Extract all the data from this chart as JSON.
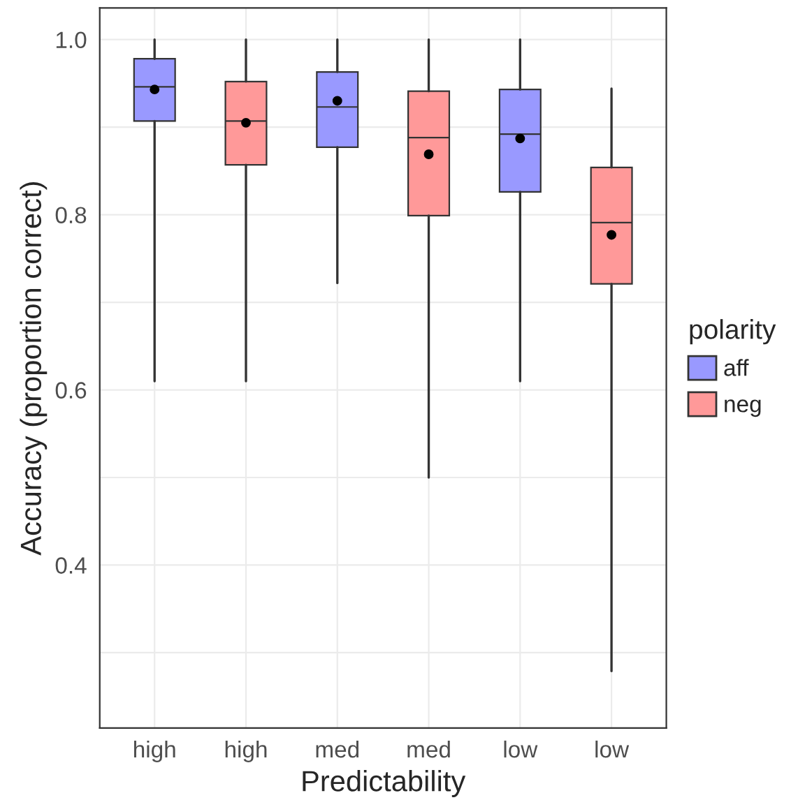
{
  "chart_data": {
    "type": "box",
    "xlabel": "Predictability",
    "ylabel": "Accuracy (proportion correct)",
    "legend_title": "polarity",
    "categories": [
      "high",
      "high",
      "med",
      "med",
      "low",
      "low"
    ],
    "series": [
      {
        "name": "aff",
        "color": "#9999ff",
        "boxes": [
          {
            "low": 0.61,
            "q1": 0.907,
            "median": 0.946,
            "q3": 0.978,
            "high": 1.0,
            "mean": 0.943
          },
          null,
          {
            "low": 0.722,
            "q1": 0.877,
            "median": 0.923,
            "q3": 0.963,
            "high": 1.0,
            "mean": 0.93
          },
          null,
          {
            "low": 0.61,
            "q1": 0.826,
            "median": 0.892,
            "q3": 0.943,
            "high": 1.0,
            "mean": 0.887
          },
          null
        ]
      },
      {
        "name": "neg",
        "color": "#ff9999",
        "boxes": [
          null,
          {
            "low": 0.61,
            "q1": 0.857,
            "median": 0.907,
            "q3": 0.952,
            "high": 1.0,
            "mean": 0.905
          },
          null,
          {
            "low": 0.5,
            "q1": 0.799,
            "median": 0.888,
            "q3": 0.941,
            "high": 1.0,
            "mean": 0.869
          },
          null,
          {
            "low": 0.279,
            "q1": 0.721,
            "median": 0.791,
            "q3": 0.854,
            "high": 0.944,
            "mean": 0.777
          }
        ]
      }
    ],
    "ylim": [
      0.214,
      1.036
    ],
    "yticks": [
      {
        "value": 0.3,
        "label": null
      },
      {
        "value": 0.4,
        "label": "0.4"
      },
      {
        "value": 0.5,
        "label": null
      },
      {
        "value": 0.6,
        "label": "0.6"
      },
      {
        "value": 0.7,
        "label": null
      },
      {
        "value": 0.8,
        "label": "0.8"
      },
      {
        "value": 0.9,
        "label": null
      },
      {
        "value": 1.0,
        "label": "1.0"
      }
    ],
    "grid": true,
    "legend": "right"
  }
}
